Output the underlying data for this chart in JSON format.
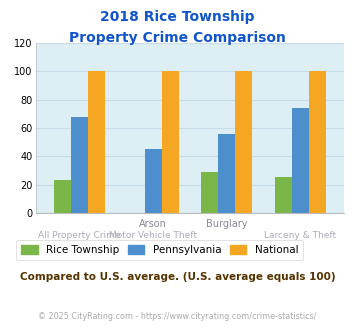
{
  "title_line1": "2018 Rice Township",
  "title_line2": "Property Crime Comparison",
  "cat_labels_top": [
    "",
    "Arson",
    "Burglary",
    ""
  ],
  "cat_labels_bot": [
    "All Property Crime",
    "Motor Vehicle Theft",
    "",
    "Larceny & Theft"
  ],
  "rice_values": [
    23,
    0,
    29,
    25
  ],
  "pa_values": [
    68,
    45,
    56,
    74
  ],
  "national_values": [
    100,
    100,
    100,
    100
  ],
  "color_rice": "#7ab648",
  "color_pa": "#4d8fcc",
  "color_national": "#f5a623",
  "ylim": [
    0,
    120
  ],
  "yticks": [
    0,
    20,
    40,
    60,
    80,
    100,
    120
  ],
  "grid_color": "#c8dce8",
  "bg_color": "#ddeef5",
  "title_color": "#1155cc",
  "xlabel_top_color": "#888899",
  "xlabel_bot_color": "#aaaabb",
  "annotation_text": "Compared to U.S. average. (U.S. average equals 100)",
  "annotation_color": "#553300",
  "copyright_text": "© 2025 CityRating.com - https://www.cityrating.com/crime-statistics/",
  "copyright_color": "#aaaaaa",
  "legend_labels": [
    "Rice Township",
    "Pennsylvania",
    "National"
  ],
  "bar_width": 0.23
}
